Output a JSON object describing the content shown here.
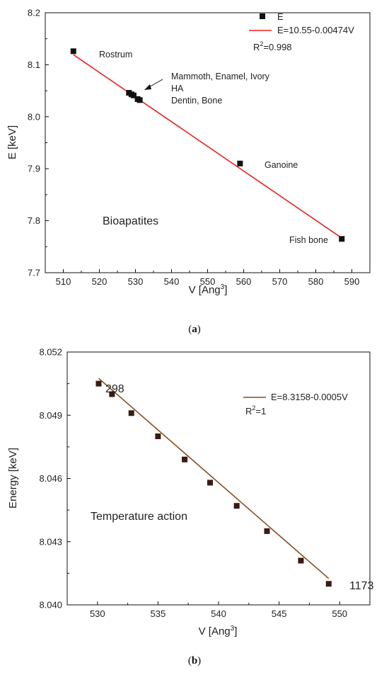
{
  "chart_data": [
    {
      "type": "scatter",
      "panel_label": "a",
      "xlabel": "V [Ang",
      "xlabel_sup": "3",
      "ylabel": "E [keV]",
      "xlim": [
        505,
        595
      ],
      "ylim": [
        7.7,
        8.2
      ],
      "xticks": [
        510,
        520,
        530,
        540,
        550,
        560,
        570,
        580,
        590
      ],
      "yticks": [
        "7.7",
        "7.8",
        "7.9",
        "8.0",
        "8.1",
        "8.2"
      ],
      "grid": false,
      "legend": {
        "position": "top-right",
        "marker_label": "E",
        "line_label": "E=10.55-0.00474V",
        "r2_prefix": "R",
        "r2_sup": "2",
        "r2_suffix": "=0.998"
      },
      "series": [
        {
          "name": "E",
          "x": [
            512.8,
            528.2,
            528.9,
            529.5,
            530.6,
            531.2,
            559.0,
            587.2
          ],
          "y": [
            8.126,
            8.046,
            8.043,
            8.041,
            8.034,
            8.032,
            7.91,
            7.765
          ],
          "color": "#111111"
        }
      ],
      "fit": {
        "intercept": 10.55,
        "slope": -0.00474,
        "x_range": [
          512.8,
          587.2
        ],
        "color": "#e8201e"
      },
      "annotations": {
        "rostrum": "Rostrum",
        "mammoth": "Mammoth, Enamel, Ivory",
        "ha": "HA",
        "dentin": "Dentin, Bone",
        "ganoine": "Ganoine",
        "fishbone": "Fish bone",
        "group": "Bioapatites"
      }
    },
    {
      "type": "scatter",
      "panel_label": "b",
      "xlabel": "V [Ang",
      "xlabel_sup": "3",
      "ylabel": "Energy [keV]",
      "xlim": [
        527.5,
        552.5
      ],
      "ylim": [
        8.04,
        8.052
      ],
      "xticks": [
        530,
        535,
        540,
        545,
        550
      ],
      "yticks": [
        "8.040",
        "8.043",
        "8.046",
        "8.049",
        "8.052"
      ],
      "grid": false,
      "legend": {
        "position": "top-right",
        "line_label": "E=8.3158-0.0005V",
        "r2_prefix": "R",
        "r2_sup": "2",
        "r2_suffix": "=1"
      },
      "series": [
        {
          "name": "",
          "x": [
            530.1,
            531.2,
            532.8,
            535.0,
            537.2,
            539.3,
            541.5,
            544.0,
            546.8,
            549.1
          ],
          "y": [
            8.0505,
            8.05,
            8.0491,
            8.048,
            8.0469,
            8.0458,
            8.0447,
            8.0435,
            8.0421,
            8.041
          ],
          "color": "#3a1a12"
        }
      ],
      "fit": {
        "intercept": 8.3158,
        "slope": -0.0005,
        "x_range": [
          530.1,
          549.1
        ],
        "color": "#8b4a1c"
      },
      "annotations": {
        "t_start": "298",
        "t_end": "1173",
        "group": "Temperature action"
      }
    }
  ]
}
